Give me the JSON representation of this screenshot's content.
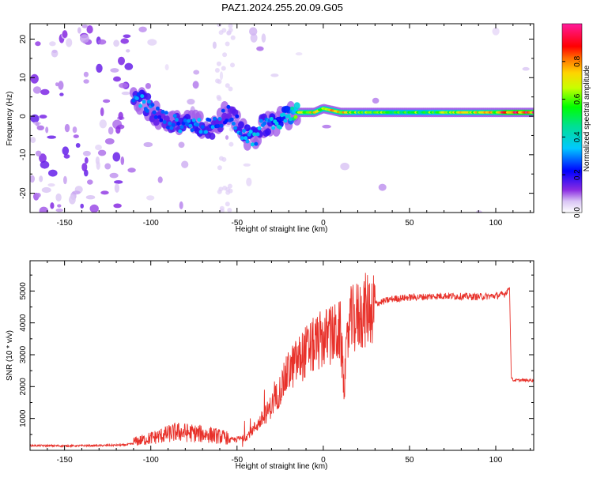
{
  "title": "PAZ1.2024.255.20.09.G05",
  "chart_data": [
    {
      "type": "heatmap",
      "xlabel": "Height of straight line (km)",
      "ylabel": "Frequency (Hz)",
      "xlim": [
        -170,
        122
      ],
      "ylim": [
        -25,
        24
      ],
      "xticks": [
        -150,
        -100,
        -50,
        0,
        50,
        100
      ],
      "yticks": [
        -20,
        -10,
        0,
        10,
        20
      ],
      "colorbar": {
        "label": "Normalized spectral amplitude",
        "range": [
          0,
          1
        ],
        "ticks": [
          "0.0",
          "0.2",
          "0.4",
          "0.6",
          "0.8"
        ],
        "colormap": "rainbow (violet → blue → cyan → green → yellow → red → magenta)"
      },
      "ridge": [
        {
          "x": -110,
          "f": 5,
          "amp": 0.3
        },
        {
          "x": -105,
          "f": 4,
          "amp": 0.35
        },
        {
          "x": -95,
          "f": 0,
          "amp": 0.25
        },
        {
          "x": -85,
          "f": -2,
          "amp": 0.3
        },
        {
          "x": -75,
          "f": -2,
          "amp": 0.35
        },
        {
          "x": -65,
          "f": -3,
          "amp": 0.3
        },
        {
          "x": -55,
          "f": 1,
          "amp": 0.25
        },
        {
          "x": -50,
          "f": -2,
          "amp": 0.3
        },
        {
          "x": -45,
          "f": -5,
          "amp": 0.35
        },
        {
          "x": -40,
          "f": -6,
          "amp": 0.35
        },
        {
          "x": -35,
          "f": -2,
          "amp": 0.3
        },
        {
          "x": -30,
          "f": -2,
          "amp": 0.35
        },
        {
          "x": -25,
          "f": -1,
          "amp": 0.4
        },
        {
          "x": -20,
          "f": 0,
          "amp": 0.45
        },
        {
          "x": -15,
          "f": 1,
          "amp": 0.7
        },
        {
          "x": -5,
          "f": 1,
          "amp": 0.75
        },
        {
          "x": 0,
          "f": 2,
          "amp": 0.7
        },
        {
          "x": 10,
          "f": 1,
          "amp": 0.8
        },
        {
          "x": 20,
          "f": 1,
          "amp": 0.6
        },
        {
          "x": 40,
          "f": 1,
          "amp": 0.6
        },
        {
          "x": 60,
          "f": 1,
          "amp": 0.6
        },
        {
          "x": 80,
          "f": 1,
          "amp": 0.7
        },
        {
          "x": 100,
          "f": 1,
          "amp": 0.75
        },
        {
          "x": 105,
          "f": 1,
          "amp": 0.9
        },
        {
          "x": 115,
          "f": 1,
          "amp": 0.95
        },
        {
          "x": 122,
          "f": 1,
          "amp": 0.9
        }
      ]
    },
    {
      "type": "line",
      "xlabel": "Height of straight line (km)",
      "ylabel": "SNR (10 * v/v)",
      "xlim": [
        -170,
        122
      ],
      "ylim": [
        0,
        5950
      ],
      "xticks": [
        -150,
        -100,
        -50,
        0,
        50,
        100
      ],
      "yticks": [
        1000,
        2000,
        3000,
        4000,
        5000
      ],
      "series": [
        {
          "color": "#e8312a",
          "x": [
            -170,
            -150,
            -130,
            -115,
            -105,
            -95,
            -85,
            -75,
            -65,
            -55,
            -45,
            -40,
            -35,
            -30,
            -25,
            -20,
            -15,
            -10,
            -5,
            0,
            5,
            10,
            12,
            15,
            20,
            25,
            30,
            40,
            50,
            60,
            70,
            80,
            90,
            100,
            105,
            108,
            109,
            110,
            115,
            122
          ],
          "values": [
            150,
            140,
            150,
            170,
            250,
            350,
            450,
            420,
            380,
            300,
            400,
            700,
            1000,
            1400,
            1900,
            2500,
            2800,
            3100,
            3300,
            3500,
            3600,
            3700,
            2000,
            4000,
            4200,
            4400,
            4600,
            4750,
            4800,
            4820,
            4850,
            4830,
            4820,
            4850,
            4900,
            5100,
            2300,
            2200,
            2200,
            2200
          ]
        }
      ]
    }
  ]
}
